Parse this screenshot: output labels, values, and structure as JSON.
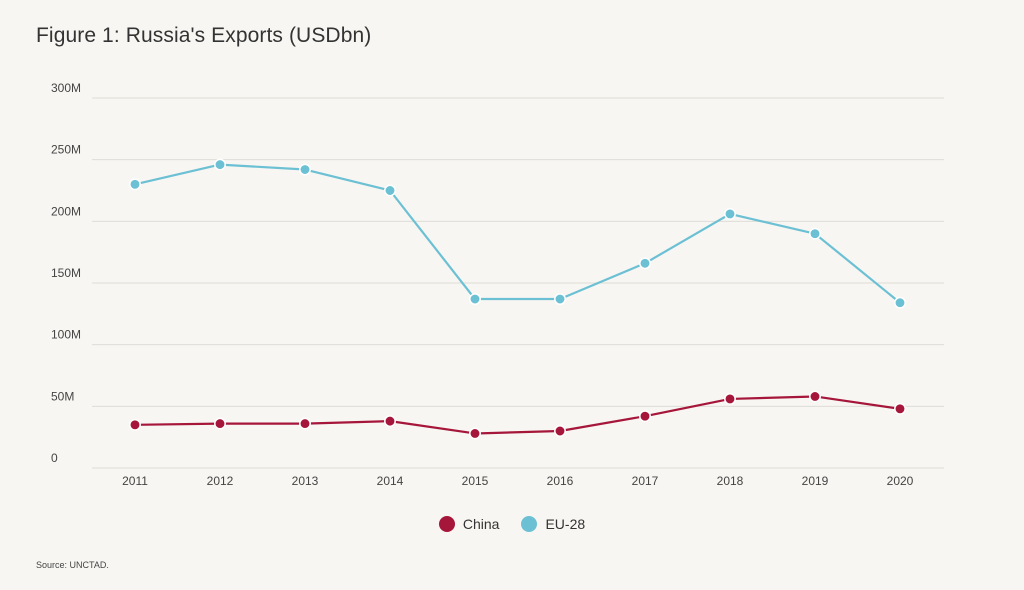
{
  "title": "Figure 1: Russia's Exports (USDbn)",
  "source": "Source: UNCTAD.",
  "colors": {
    "china": "#a6163a",
    "eu": "#6cc0d4",
    "grid": "#dedcd6",
    "background": "#f7f6f2"
  },
  "chart_data": {
    "type": "line",
    "title": "Figure 1: Russia's Exports (USDbn)",
    "x": [
      "2011",
      "2012",
      "2013",
      "2014",
      "2015",
      "2016",
      "2017",
      "2018",
      "2019",
      "2020"
    ],
    "ylim": [
      0,
      300000000
    ],
    "yticks": [
      0,
      50000000,
      100000000,
      150000000,
      200000000,
      250000000,
      300000000
    ],
    "ytick_labels": [
      "0",
      "50M",
      "100M",
      "150M",
      "200M",
      "250M",
      "300M"
    ],
    "grid": true,
    "legend_position": "bottom-center",
    "series": [
      {
        "name": "China",
        "color": "#a6163a",
        "values": [
          35000000,
          36000000,
          36000000,
          38000000,
          28000000,
          30000000,
          42000000,
          56000000,
          58000000,
          48000000
        ]
      },
      {
        "name": "EU-28",
        "color": "#6cc0d4",
        "values": [
          230000000,
          246000000,
          242000000,
          225000000,
          137000000,
          137000000,
          166000000,
          206000000,
          190000000,
          134000000
        ]
      }
    ]
  }
}
